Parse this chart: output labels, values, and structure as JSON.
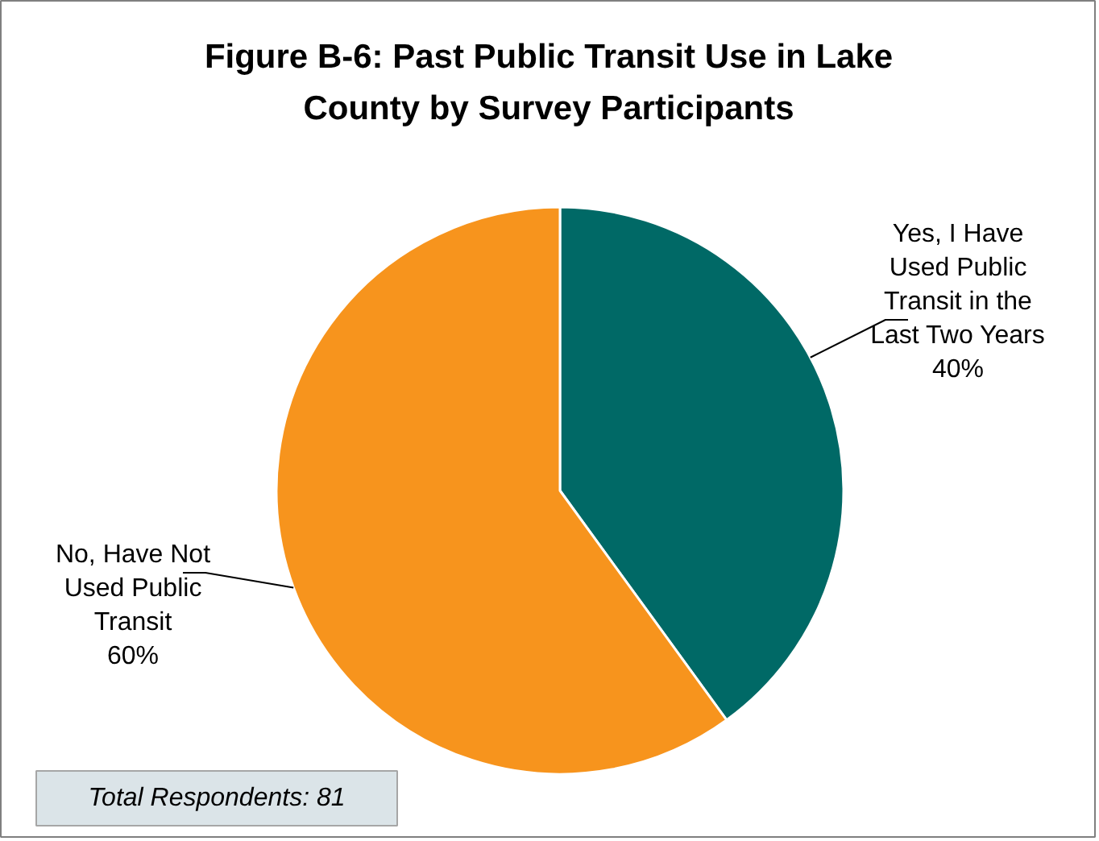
{
  "chart_data": {
    "type": "pie",
    "title": "Figure B-6: Past Public Transit Use in Lake County by Survey Participants",
    "categories": [
      "Yes, I Have Used Public Transit in the Last Two Years",
      "No, Have Not Used Public Transit"
    ],
    "values": [
      40,
      60
    ],
    "colors": [
      "#006966",
      "#f7941d"
    ],
    "value_labels": [
      "40%",
      "60%"
    ],
    "annotations": [
      "Total Respondents: 81"
    ]
  }
}
